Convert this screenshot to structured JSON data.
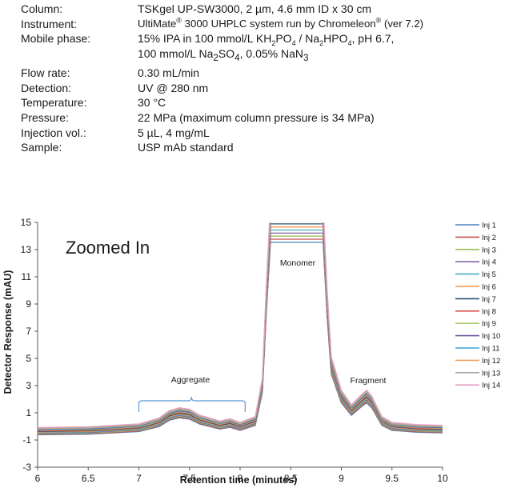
{
  "conditions": {
    "column": {
      "label": "Column:",
      "value": "TSKgel UP-SW3000, 2 µm, 4.6 mm ID x 30 cm"
    },
    "instrument": {
      "label": "Instrument:",
      "value_a": "UltiMate",
      "value_b": " 3000 UHPLC system run by Chromeleon",
      "value_c": " (ver 7.2)",
      "reg": "®"
    },
    "mobile_phase": {
      "label": "Mobile phase:",
      "line1": {
        "a": "15% IPA in 100 mmol/L KH",
        "s1": "2",
        "b": "PO",
        "s2": "4",
        "c": " / Na",
        "s3": "2",
        "d": "HPO",
        "s4": "4",
        "e": ", pH 6.7,"
      },
      "line2": {
        "a": "100 mmol/L Na",
        "s1": "2",
        "b": "SO",
        "s2": "4",
        "c": ", 0.05% NaN",
        "s3": "3"
      }
    },
    "flow_rate": {
      "label": "Flow rate:",
      "value": "0.30 mL/min"
    },
    "detection": {
      "label": "Detection:",
      "value": "UV @ 280 nm"
    },
    "temperature": {
      "label": "Temperature:",
      "value": "30 °C"
    },
    "pressure": {
      "label": "Pressure:",
      "value": "22 MPa (maximum column pressure is 34 MPa)"
    },
    "injection": {
      "label": "Injection vol.:",
      "value": "5 µL, 4 mg/mL"
    },
    "sample": {
      "label": "Sample:",
      "value": "USP mAb standard"
    }
  },
  "chart_data": {
    "type": "line",
    "xlabel": "Retention time (minutes)",
    "ylabel": "Detector Response (mAU)",
    "xlim": [
      6,
      10
    ],
    "ylim": [
      -3,
      15
    ],
    "xticks": [
      "6",
      "6.5",
      "7",
      "7.5",
      "8",
      "8.5",
      "9",
      "9.5",
      "10"
    ],
    "yticks": [
      "-3",
      "-1",
      "1",
      "3",
      "5",
      "7",
      "9",
      "11",
      "13",
      "15"
    ],
    "grid": false,
    "legend_position": "right",
    "annotations": {
      "zoom": "Zoomed In",
      "monomer": "Monomer",
      "aggregate": "Aggregate",
      "fragment": "Fragment"
    },
    "x": [
      6.0,
      6.5,
      7.0,
      7.2,
      7.3,
      7.4,
      7.5,
      7.6,
      7.8,
      7.9,
      8.0,
      8.15,
      8.22,
      8.26,
      8.3,
      8.82,
      8.86,
      8.9,
      9.0,
      9.1,
      9.2,
      9.25,
      9.3,
      9.4,
      9.5,
      9.75,
      10.0
    ],
    "base": [
      -0.35,
      -0.3,
      -0.1,
      0.3,
      0.8,
      1.0,
      0.9,
      0.5,
      0.1,
      0.25,
      0.0,
      0.4,
      3.0,
      9.5,
      15.0,
      15.0,
      9.0,
      4.5,
      2.2,
      1.2,
      1.9,
      2.2,
      1.8,
      0.4,
      0.0,
      -0.15,
      -0.2
    ],
    "series": [
      {
        "name": "Inj 1",
        "color": "#4f81bd"
      },
      {
        "name": "Inj 2",
        "color": "#c0504d"
      },
      {
        "name": "Inj 3",
        "color": "#9bbb59"
      },
      {
        "name": "Inj 4",
        "color": "#8064a2"
      },
      {
        "name": "Inj 5",
        "color": "#4bacc6"
      },
      {
        "name": "Inj 6",
        "color": "#f79646"
      },
      {
        "name": "Inj 7",
        "color": "#2c4d75"
      },
      {
        "name": "Inj 8",
        "color": "#d9534f"
      },
      {
        "name": "Inj 9",
        "color": "#a9c96b"
      },
      {
        "name": "Inj 10",
        "color": "#6f58a0"
      },
      {
        "name": "Inj 11",
        "color": "#36a9d6"
      },
      {
        "name": "Inj 12",
        "color": "#f0a35e"
      },
      {
        "name": "Inj 13",
        "color": "#a6a6a6"
      },
      {
        "name": "Inj 14",
        "color": "#e6a0c4"
      }
    ]
  }
}
